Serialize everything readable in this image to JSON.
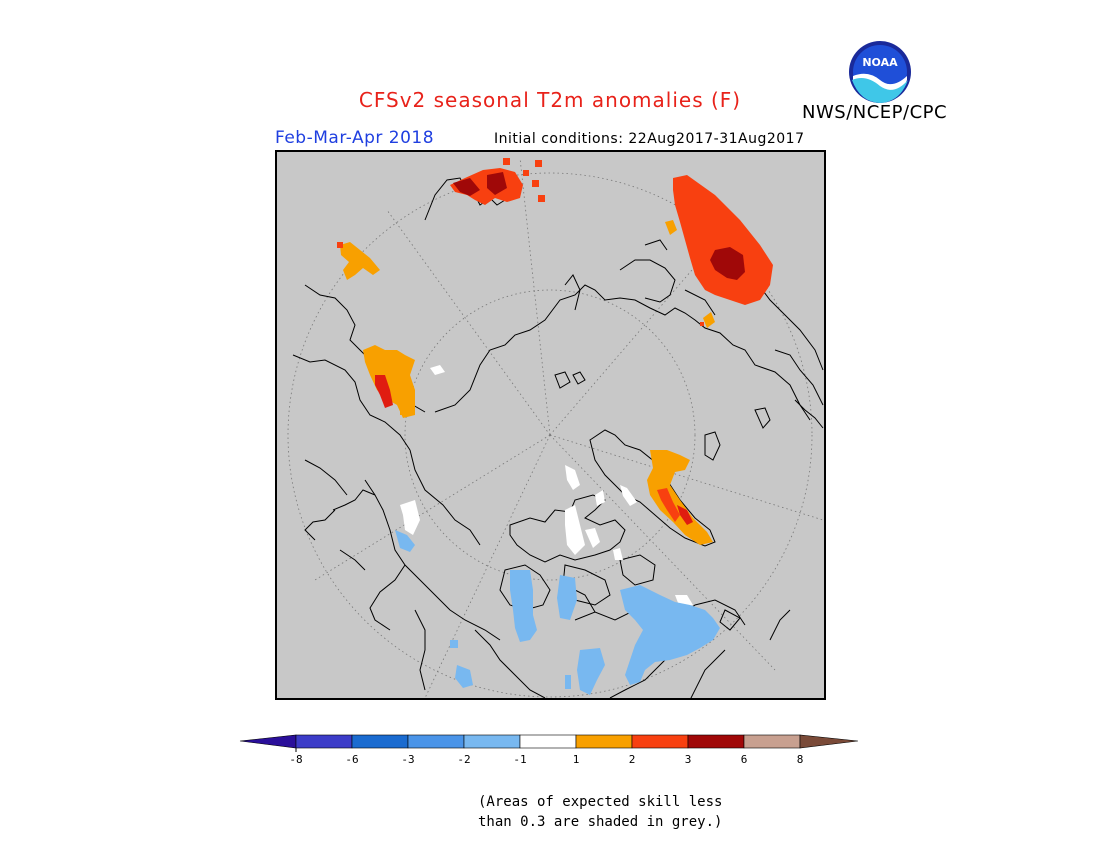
{
  "header": {
    "title": "CFSv2 seasonal T2m anomalies (F)",
    "season": "Feb-Mar-Apr 2018",
    "initial_conditions": "Initial conditions: 22Aug2017-31Aug2017",
    "agency": "NWS/NCEP/CPC",
    "logo_text": "NOAA"
  },
  "colors": {
    "title": "#e8221a",
    "season": "#1f3fe0",
    "ocean": "#c8c8c8",
    "minus8": "#2a0f9a",
    "minus6": "#3c3cc8",
    "minus3": "#1a6bd0",
    "minus2": "#4a94e8",
    "minus1": "#78b8f0",
    "neutral": "#ffffff",
    "plus1": "#f8a000",
    "plus2": "#f84010",
    "plus3": "#e01c10",
    "plus6": "#a00808",
    "plus8": "#c8a090",
    "over8": "#7a4a38"
  },
  "colorbar": {
    "tick_labels": [
      "-8",
      "-6",
      "-3",
      "-2",
      "-1",
      "1",
      "2",
      "3",
      "6",
      "8"
    ]
  },
  "footnote": {
    "line1": "(Areas of expected skill less",
    "line2": "than 0.3 are shaded in grey.)"
  }
}
